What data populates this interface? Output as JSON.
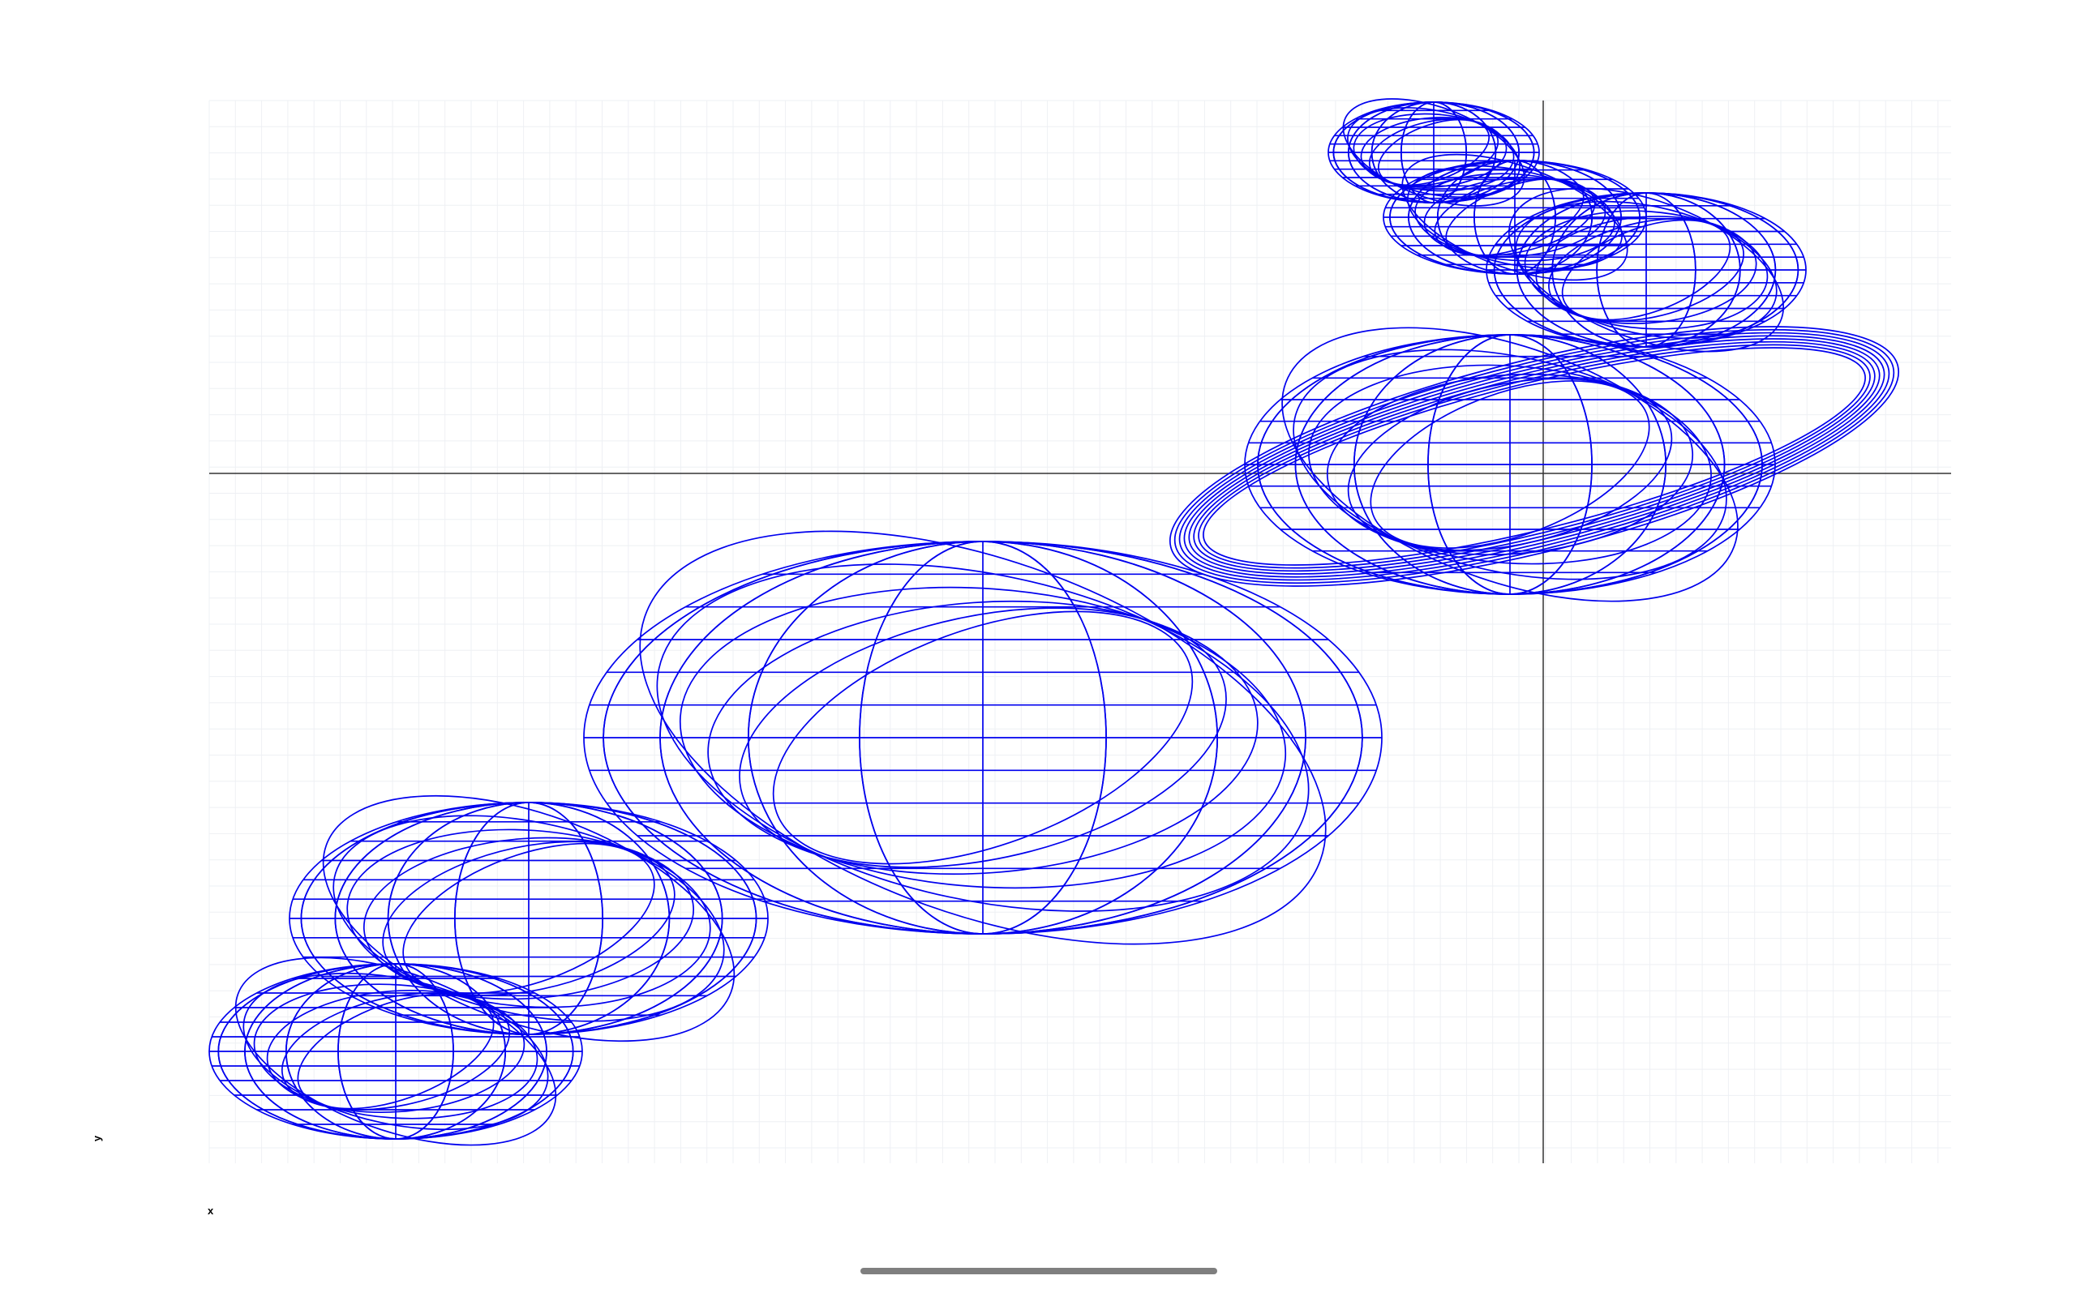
{
  "x_axis_label": "x",
  "y_axis_label": "y",
  "colors": {
    "wireframe": "#0000ee",
    "grid": "#eef0f4",
    "axis_lines": "#333333",
    "home_indicator": "#7f7f7f"
  },
  "icons": {
    "home_indicator": "home-indicator-bar"
  }
}
